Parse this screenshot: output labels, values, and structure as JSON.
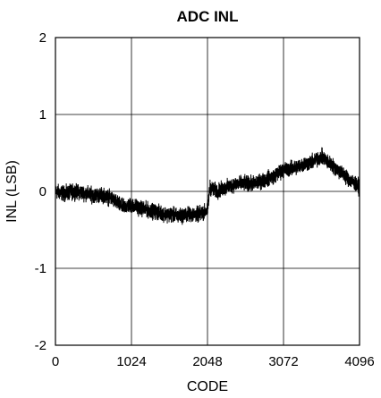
{
  "chart_data": {
    "type": "line",
    "title": "ADC INL",
    "xlabel": "CODE",
    "ylabel": "INL (LSB)",
    "xlim": [
      0,
      4096
    ],
    "ylim": [
      -2,
      2
    ],
    "xticks": [
      0,
      1024,
      2048,
      3072,
      4096
    ],
    "xtick_labels": [
      "0",
      "1024",
      "2048",
      "3072",
      "4096"
    ],
    "yticks": [
      -2,
      -1,
      0,
      1,
      2
    ],
    "ytick_labels": [
      "-2",
      "-1",
      "0",
      "1",
      "2"
    ],
    "grid": true,
    "line_color": "#000000",
    "series": [
      {
        "x": [
          0,
          128,
          256,
          384,
          512,
          640,
          768,
          896,
          1024,
          1152,
          1280,
          1408,
          1536,
          1664,
          1792,
          1920,
          2048,
          2080,
          2176,
          2304,
          2432,
          2560,
          2688,
          2816,
          2944,
          3072,
          3200,
          3328,
          3456,
          3584,
          3712,
          3840,
          3968,
          4096
        ],
        "y": [
          0.0,
          -0.03,
          0.0,
          -0.02,
          -0.05,
          -0.05,
          -0.1,
          -0.2,
          -0.18,
          -0.22,
          -0.25,
          -0.28,
          -0.3,
          -0.32,
          -0.3,
          -0.3,
          -0.25,
          0.05,
          0.0,
          0.05,
          0.1,
          0.1,
          0.1,
          0.15,
          0.2,
          0.28,
          0.3,
          0.35,
          0.38,
          0.45,
          0.35,
          0.25,
          0.15,
          0.05
        ],
        "noise": 0.06,
        "samples": 4096
      }
    ]
  }
}
